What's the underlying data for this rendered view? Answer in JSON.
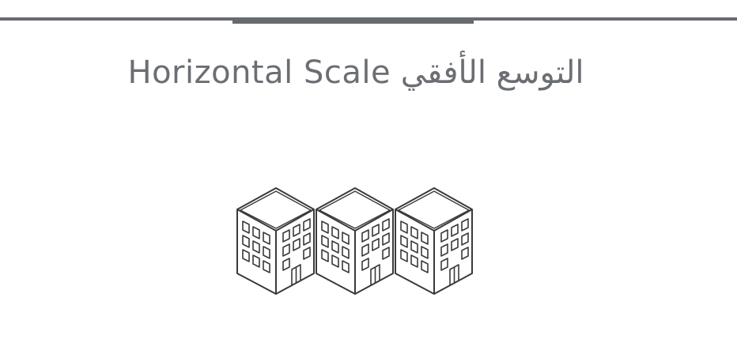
{
  "title": {
    "text": "التوسع الأفقي Horizontal Scale"
  },
  "colors": {
    "rule": "#676b70",
    "title_text": "#6b6e73",
    "icon_stroke": "#3a3a3a",
    "background": "#ffffff"
  },
  "icons": {
    "building": "building-icon",
    "count": 3
  }
}
